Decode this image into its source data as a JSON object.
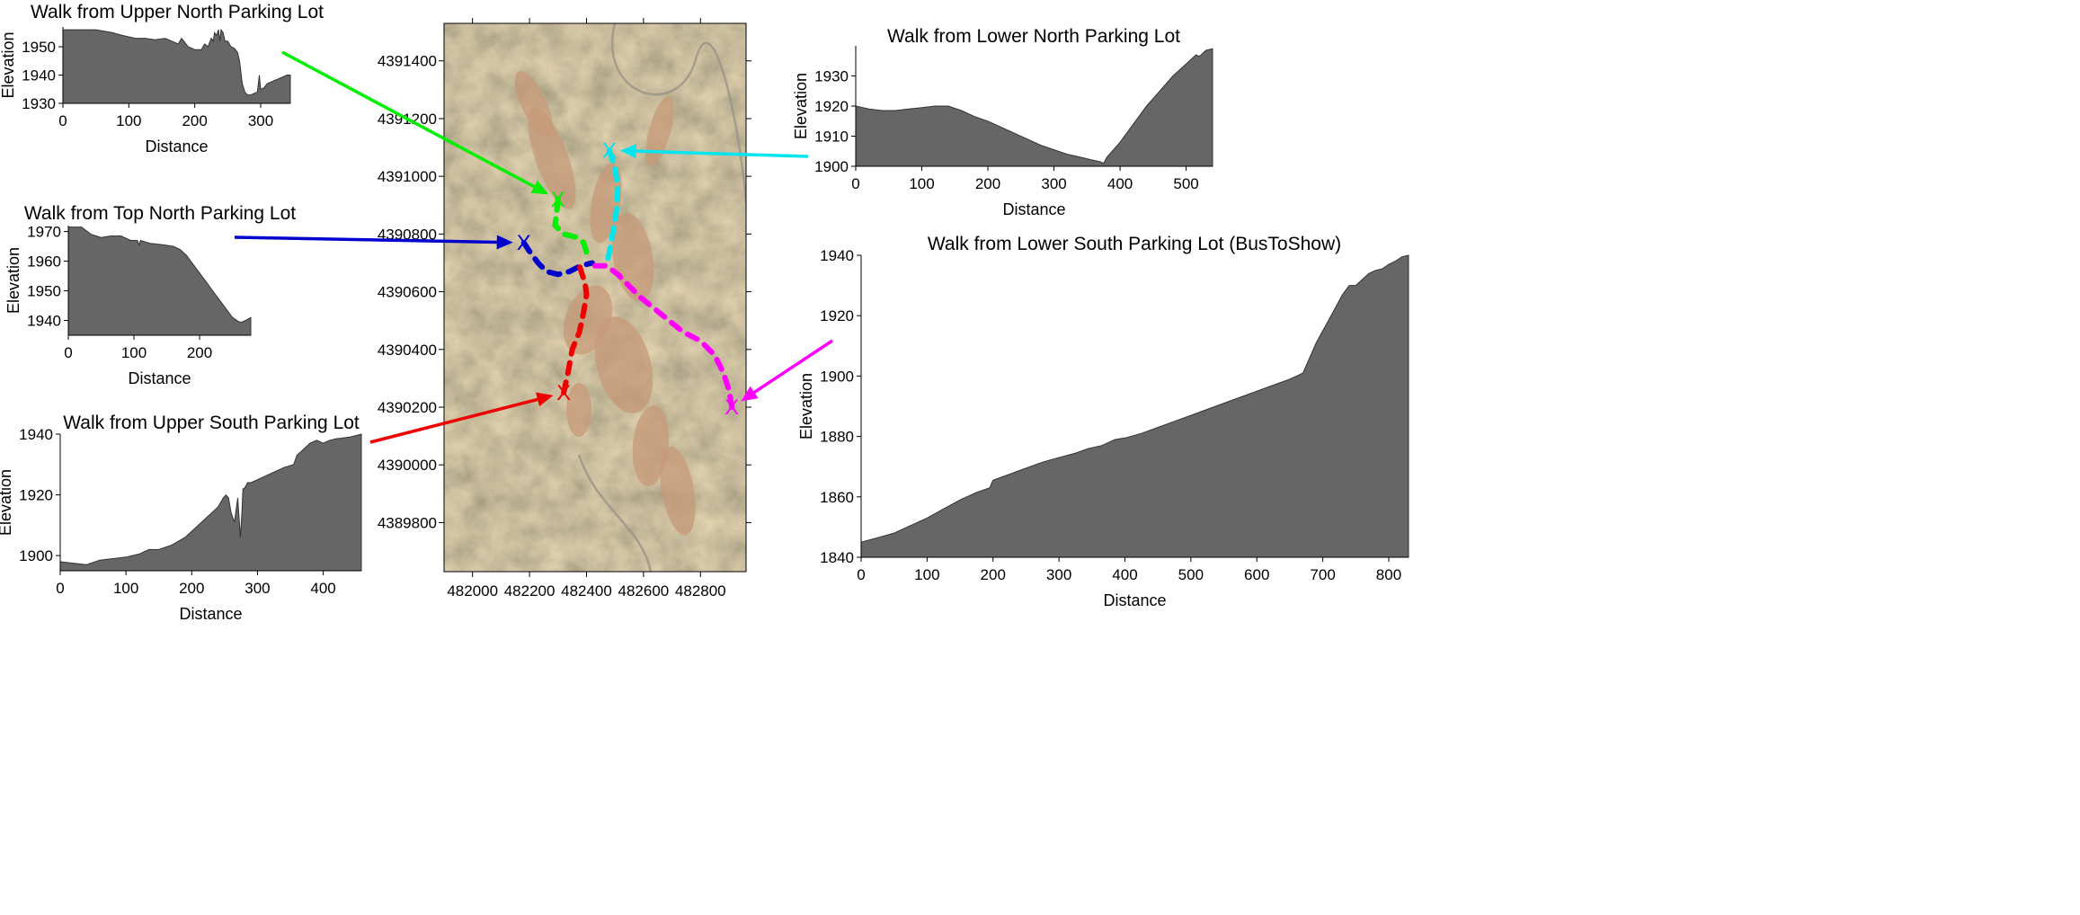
{
  "chart_data": [
    {
      "id": "upper-north",
      "type": "area",
      "title": "Walk from Upper North Parking Lot",
      "xlabel": "Distance",
      "ylabel": "Elevation",
      "xlim": [
        0,
        345
      ],
      "ylim": [
        1930,
        1957
      ],
      "xticks": [
        0,
        100,
        200,
        300
      ],
      "yticks": [
        1930,
        1940,
        1950
      ],
      "fill": "#666666",
      "x": [
        0,
        20,
        50,
        75,
        90,
        110,
        125,
        140,
        155,
        165,
        175,
        180,
        185,
        190,
        200,
        210,
        215,
        220,
        225,
        228,
        230,
        233,
        236,
        238,
        240,
        243,
        246,
        250,
        255,
        260,
        265,
        268,
        272,
        276,
        280,
        285,
        290,
        295,
        298,
        300,
        305,
        310,
        320,
        330,
        340,
        345
      ],
      "y": [
        1956,
        1956,
        1956,
        1955,
        1954,
        1953,
        1953,
        1952.5,
        1953,
        1952,
        1951,
        1953,
        1951.5,
        1950,
        1949,
        1949,
        1951,
        1950,
        1953,
        1952,
        1955,
        1954,
        1956,
        1952,
        1956,
        1955,
        1952,
        1952,
        1950,
        1949.5,
        1948,
        1945,
        1937,
        1934,
        1933,
        1933,
        1933.5,
        1934,
        1940,
        1935,
        1935.5,
        1937,
        1938,
        1939,
        1940,
        1940
      ]
    },
    {
      "id": "top-north",
      "type": "area",
      "title": "Walk from Top North Parking Lot",
      "xlabel": "Distance",
      "ylabel": "Elevation",
      "xlim": [
        0,
        278
      ],
      "ylim": [
        1935,
        1972
      ],
      "xticks": [
        0,
        100,
        200
      ],
      "yticks": [
        1940,
        1950,
        1960,
        1970
      ],
      "fill": "#666666",
      "x": [
        0,
        20,
        35,
        50,
        65,
        80,
        95,
        105,
        108,
        110,
        125,
        145,
        160,
        170,
        180,
        190,
        200,
        210,
        220,
        230,
        240,
        250,
        260,
        265,
        270,
        278
      ],
      "y": [
        1971.5,
        1971.5,
        1969,
        1968,
        1968.5,
        1968.5,
        1967,
        1967,
        1965.5,
        1967,
        1966,
        1965.5,
        1965,
        1964,
        1962,
        1959,
        1956,
        1953,
        1950,
        1947,
        1944,
        1941,
        1939.5,
        1939.5,
        1940,
        1941
      ]
    },
    {
      "id": "upper-south",
      "type": "area",
      "title": "Walk from Upper South Parking Lot",
      "xlabel": "Distance",
      "ylabel": "Elevation",
      "xlim": [
        0,
        458
      ],
      "ylim": [
        1895,
        1940
      ],
      "xticks": [
        0,
        100,
        200,
        300,
        400
      ],
      "yticks": [
        1900,
        1920,
        1940
      ],
      "fill": "#666666",
      "x": [
        0,
        20,
        40,
        60,
        80,
        100,
        120,
        135,
        140,
        150,
        170,
        190,
        200,
        220,
        240,
        248,
        252,
        256,
        260,
        265,
        270,
        274,
        276,
        278,
        280,
        285,
        290,
        300,
        310,
        320,
        340,
        355,
        360,
        370,
        380,
        390,
        400,
        410,
        420,
        440,
        458
      ],
      "y": [
        1898,
        1897.5,
        1897,
        1898.5,
        1899,
        1899.5,
        1900.5,
        1902,
        1902,
        1902,
        1903.5,
        1906,
        1908,
        1912,
        1916,
        1919,
        1920,
        1919,
        1914,
        1911,
        1919,
        1906,
        1913,
        1922,
        1922,
        1924,
        1924,
        1925,
        1926,
        1927,
        1929,
        1930,
        1933,
        1935,
        1937,
        1938,
        1937,
        1938,
        1938.5,
        1939,
        1940
      ]
    },
    {
      "id": "lower-north",
      "type": "area",
      "title": "Walk from Lower North Parking Lot",
      "xlabel": "Distance",
      "ylabel": "Elevation",
      "xlim": [
        0,
        540
      ],
      "ylim": [
        1900,
        1940
      ],
      "xticks": [
        0,
        100,
        200,
        300,
        400,
        500
      ],
      "yticks": [
        1900,
        1910,
        1920,
        1930
      ],
      "fill": "#666666",
      "x": [
        0,
        20,
        40,
        60,
        80,
        100,
        120,
        140,
        160,
        180,
        200,
        220,
        240,
        260,
        280,
        300,
        320,
        340,
        360,
        370,
        375,
        380,
        400,
        420,
        440,
        460,
        480,
        500,
        510,
        515,
        520,
        530,
        540
      ],
      "y": [
        1920,
        1919,
        1918.5,
        1918.5,
        1919,
        1919.5,
        1920,
        1920,
        1918.5,
        1916.5,
        1915,
        1913,
        1911,
        1909,
        1907,
        1905.5,
        1904,
        1903,
        1902,
        1901.5,
        1901,
        1903,
        1908,
        1914,
        1920,
        1925,
        1930,
        1934,
        1936,
        1937,
        1936.5,
        1938.5,
        1939
      ]
    },
    {
      "id": "lower-south",
      "type": "area",
      "title": "Walk from Lower South Parking Lot (BusToShow)",
      "xlabel": "Distance",
      "ylabel": "Elevation",
      "xlim": [
        0,
        830
      ],
      "ylim": [
        1840,
        1940
      ],
      "xticks": [
        0,
        100,
        200,
        300,
        400,
        500,
        600,
        700,
        800
      ],
      "yticks": [
        1840,
        1860,
        1880,
        1900,
        1920,
        1940
      ],
      "fill": "#666666",
      "x": [
        0,
        25,
        50,
        75,
        100,
        125,
        150,
        175,
        195,
        200,
        225,
        250,
        275,
        300,
        325,
        345,
        365,
        385,
        400,
        425,
        450,
        475,
        500,
        525,
        550,
        575,
        600,
        625,
        650,
        660,
        670,
        680,
        690,
        700,
        710,
        720,
        730,
        740,
        750,
        760,
        770,
        780,
        790,
        800,
        810,
        820,
        830
      ],
      "y": [
        1845,
        1846.5,
        1848,
        1850.5,
        1853,
        1856,
        1859,
        1861.5,
        1863,
        1865.5,
        1867.5,
        1869.5,
        1871.5,
        1873,
        1874.5,
        1876,
        1877,
        1879,
        1879.5,
        1881,
        1883,
        1885,
        1887,
        1889,
        1891,
        1893,
        1895,
        1897,
        1899,
        1900,
        1901,
        1906,
        1911,
        1915,
        1919,
        1923,
        1927,
        1930,
        1930,
        1932,
        1934,
        1935,
        1935.5,
        1937,
        1938,
        1939.5,
        1940
      ]
    },
    {
      "id": "map",
      "type": "scatter",
      "title": "",
      "xticks": [
        482000,
        482200,
        482400,
        482600,
        482800
      ],
      "yticks": [
        4389800,
        4390000,
        4390200,
        4390400,
        4390600,
        4390800,
        4391000,
        4391200,
        4391400
      ],
      "xlim": [
        481900,
        482960
      ],
      "ylim": [
        4389630,
        4391530
      ],
      "series": [
        {
          "color": "#00ee00",
          "marker": "X",
          "end": [
            482300,
            4390920
          ],
          "path_x": [
            482300,
            482290,
            482320,
            482360,
            482390,
            482405
          ],
          "path_y": [
            4390920,
            4390830,
            4390800,
            4390790,
            4390770,
            4390720
          ]
        },
        {
          "color": "#00e5ee",
          "marker": "X",
          "end": [
            482480,
            4391090
          ],
          "path_x": [
            482480,
            482500,
            482510,
            482505,
            482495,
            482485,
            482470
          ],
          "path_y": [
            4391090,
            4391030,
            4390960,
            4390880,
            4390820,
            4390760,
            4390690
          ]
        },
        {
          "color": "#0000cc",
          "marker": "X",
          "end": [
            482180,
            4390770
          ],
          "path_x": [
            482180,
            482200,
            482230,
            482260,
            482300,
            482340,
            482380,
            482420
          ],
          "path_y": [
            4390770,
            4390740,
            4390700,
            4390670,
            4390660,
            4390670,
            4390690,
            4390700
          ]
        },
        {
          "color": "#ee0000",
          "marker": "X",
          "end": [
            482320,
            4390250
          ],
          "path_x": [
            482320,
            482335,
            482350,
            482375,
            482390,
            482400,
            482395,
            482385,
            482375
          ],
          "path_y": [
            4390250,
            4390320,
            4390400,
            4390460,
            4390530,
            4390590,
            4390630,
            4390660,
            4390690
          ]
        },
        {
          "color": "#ff00ff",
          "marker": "X",
          "end": [
            482910,
            4390200
          ],
          "path_x": [
            482910,
            482900,
            482880,
            482850,
            482800,
            482740,
            482690,
            482640,
            482590,
            482550,
            482510,
            482470,
            482430
          ],
          "path_y": [
            4390200,
            4390260,
            4390320,
            4390380,
            4390430,
            4390460,
            4390500,
            4390540,
            4390580,
            4390620,
            4390660,
            4390690,
            4390690
          ]
        }
      ]
    }
  ]
}
